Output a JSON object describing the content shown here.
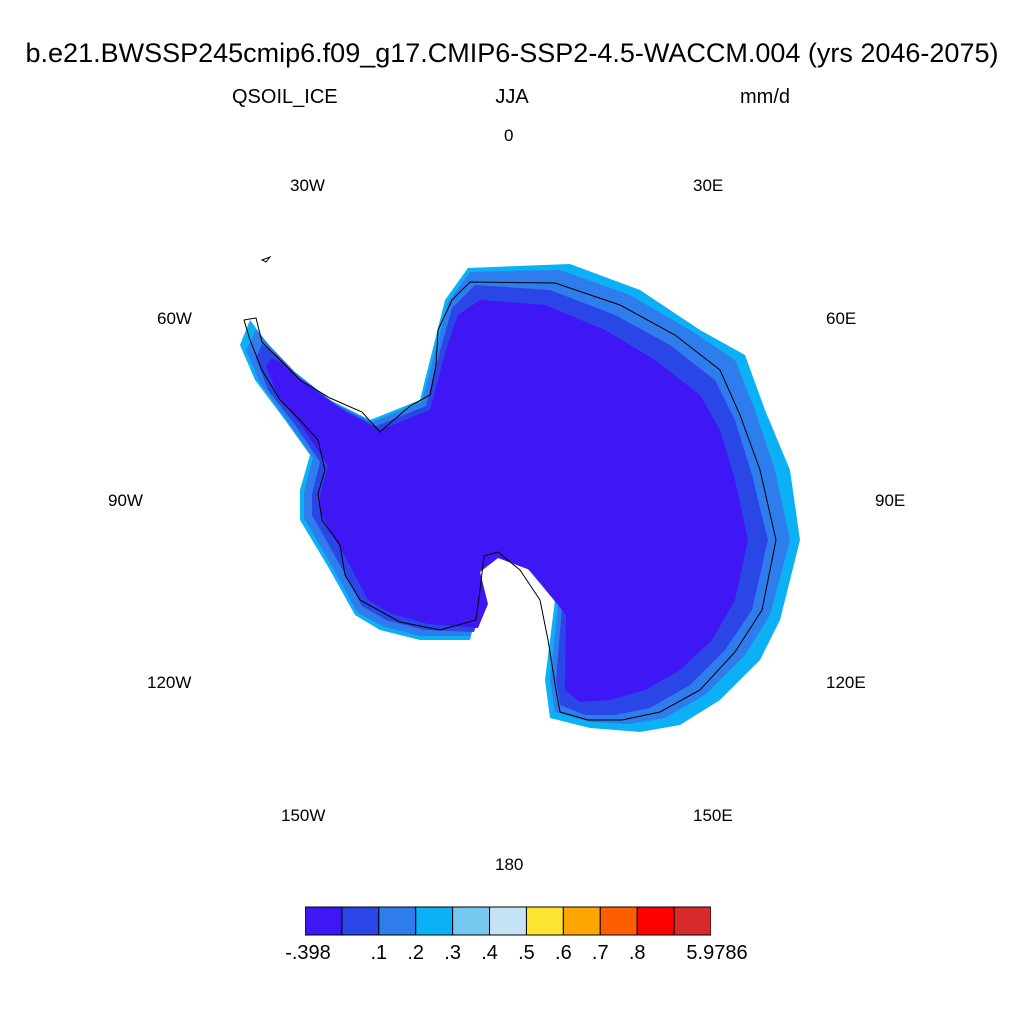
{
  "plot": {
    "title": "b.e21.BWSSP245cmip6.f09_g17.CMIP6-SSP2-4.5-WACCM.004 (yrs 2046-2075)",
    "variable": "QSOIL_ICE",
    "season": "JJA",
    "units": "mm/d"
  },
  "map": {
    "projection": "polar-stereographic-south",
    "region": "Antarctica",
    "longitude_labels": [
      "0",
      "30E",
      "60E",
      "90E",
      "120E",
      "150E",
      "180",
      "150W",
      "120W",
      "90W",
      "60W",
      "30W"
    ],
    "fill_colors": {
      "interior": "#3f16f4",
      "coast_band_1": "#2a46e6",
      "coast_band_2": "#2f7ded",
      "coast_band_3": "#0cb0f4"
    }
  },
  "colorbar": {
    "labels": [
      "-.398",
      ".1",
      ".2",
      ".3",
      ".4",
      ".5",
      ".6",
      ".7",
      ".8",
      "5.9786"
    ],
    "colors": [
      "#3f16f4",
      "#2a46e6",
      "#2f7ded",
      "#0cb0f4",
      "#77c8f0",
      "#c6e3f6",
      "#fde433",
      "#fda500",
      "#fd5e00",
      "#fd0000",
      "#d72a2a"
    ]
  }
}
